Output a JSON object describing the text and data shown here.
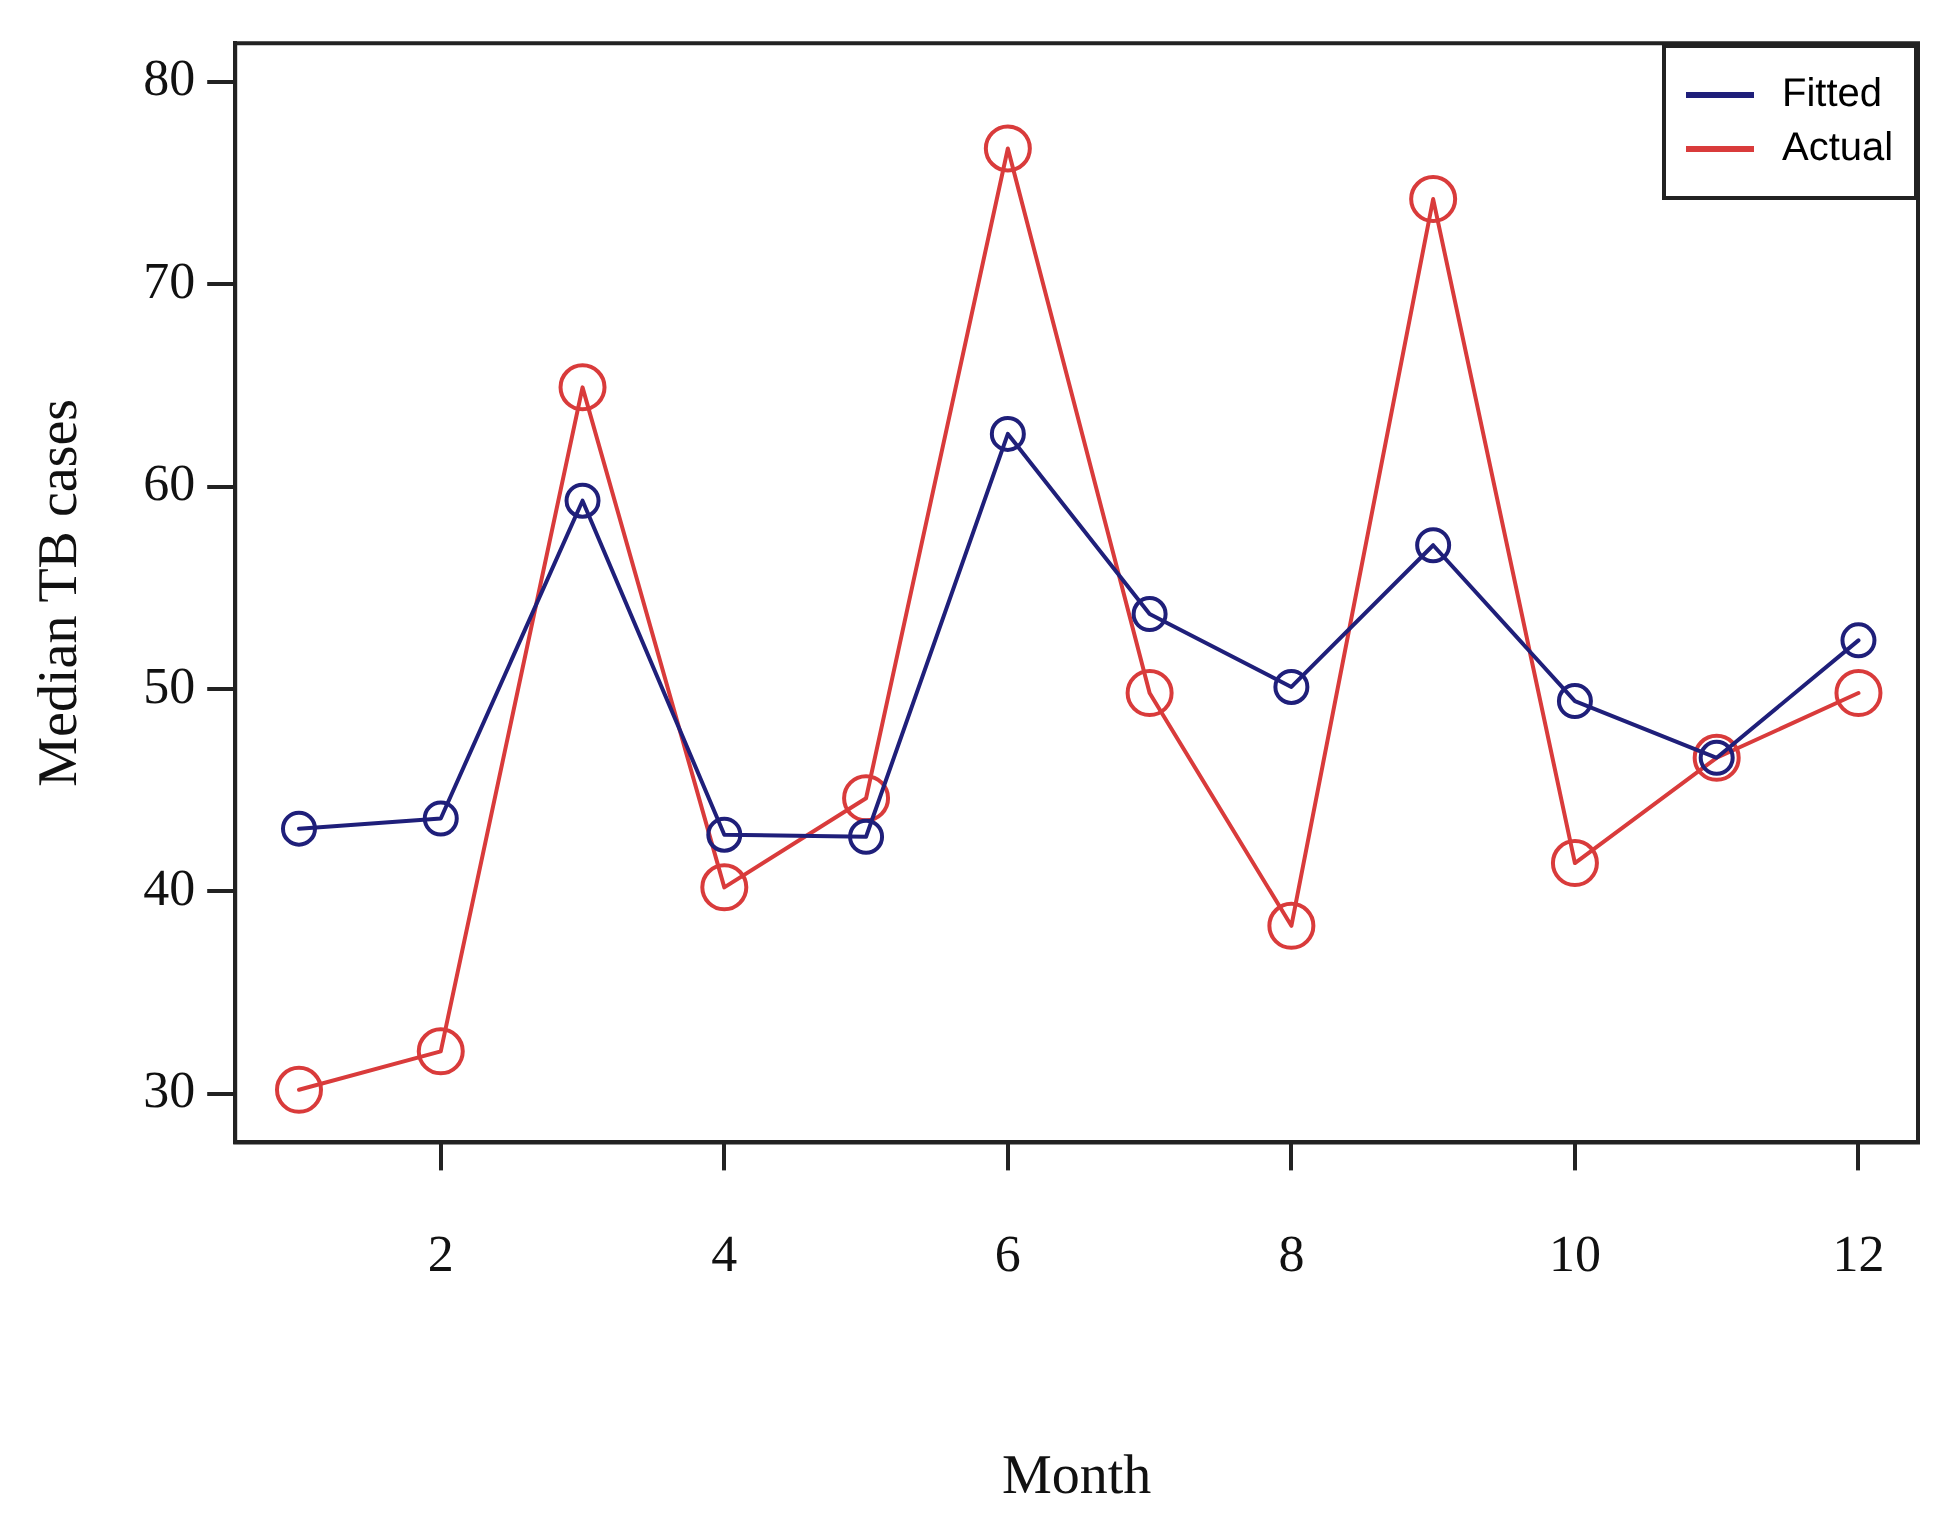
{
  "chart_data": {
    "type": "line",
    "xlabel": "Month",
    "ylabel": "Median TB cases",
    "x": [
      1,
      2,
      3,
      4,
      5,
      6,
      7,
      8,
      9,
      10,
      11,
      12
    ],
    "series": [
      {
        "name": "Fitted",
        "color": "#1f1f7a",
        "values": [
          43.1,
          43.6,
          59.3,
          42.8,
          42.7,
          62.6,
          53.7,
          50.1,
          57.1,
          49.4,
          46.6,
          52.4
        ]
      },
      {
        "name": "Actual",
        "color": "#d93b3b",
        "values": [
          30.2,
          32.1,
          64.9,
          40.2,
          44.6,
          76.7,
          49.8,
          38.3,
          74.2,
          41.4,
          46.6,
          49.8
        ]
      }
    ],
    "xlim": [
      0.55,
      12.42
    ],
    "xticks": [
      2,
      4,
      6,
      8,
      10,
      12
    ],
    "ylim": [
      27.6,
      81.9
    ],
    "yticks": [
      30,
      40,
      50,
      60,
      70,
      80
    ],
    "grid": false,
    "legend": "top right",
    "marker": "circle",
    "line_style": "solid"
  }
}
